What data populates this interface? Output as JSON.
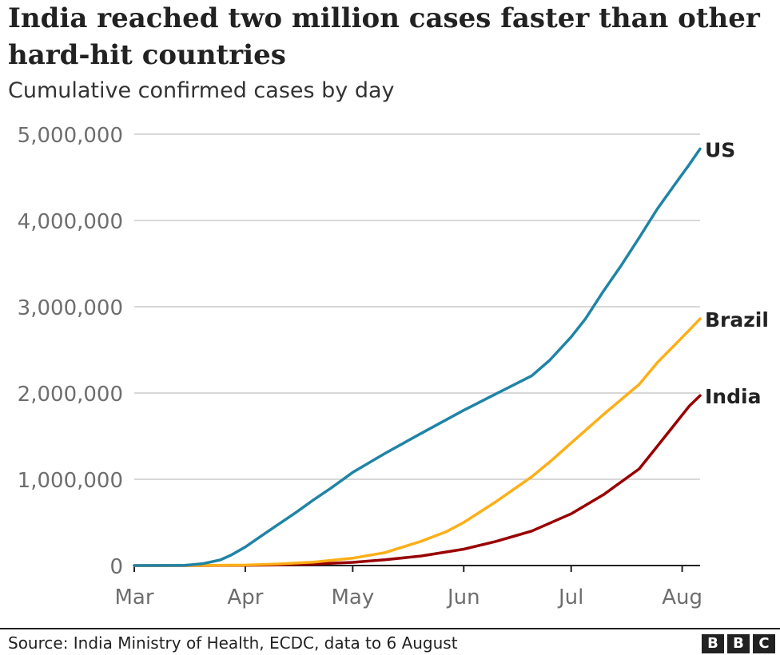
{
  "title": "India reached two million cases faster than other hard-hit countries",
  "subtitle": "Cumulative confirmed cases by day",
  "source": "Source: India Ministry of Health, ECDC, data to 6 August",
  "logo_letters": [
    "B",
    "B",
    "C"
  ],
  "colors": {
    "US": "#1f84a6",
    "Brazil": "#fdaf17",
    "India": "#990000",
    "grid": "#cccccc",
    "axis": "#222222",
    "tick_text": "#6e6e6e",
    "label_text": "#222222"
  },
  "chart_data": {
    "type": "line",
    "title": "India reached two million cases faster than other hard-hit countries",
    "subtitle": "Cumulative confirmed cases by day",
    "x_axis": {
      "type": "date",
      "ticks": [
        {
          "label": "Mar",
          "date": "2020-03-01"
        },
        {
          "label": "Apr",
          "date": "2020-04-01"
        },
        {
          "label": "May",
          "date": "2020-05-01"
        },
        {
          "label": "Jun",
          "date": "2020-06-01"
        },
        {
          "label": "Jul",
          "date": "2020-07-01"
        },
        {
          "label": "Aug",
          "date": "2020-08-01"
        }
      ],
      "range": [
        "2020-03-01",
        "2020-08-06"
      ]
    },
    "y_axis": {
      "range": [
        0,
        5000000
      ],
      "ticks": [
        {
          "value": 0,
          "label": "0"
        },
        {
          "value": 1000000,
          "label": "1,000,000"
        },
        {
          "value": 2000000,
          "label": "2,000,000"
        },
        {
          "value": 3000000,
          "label": "3,000,000"
        },
        {
          "value": 4000000,
          "label": "4,000,000"
        },
        {
          "value": 5000000,
          "label": "5,000,000"
        }
      ],
      "grid": true
    },
    "legend": "direct labels at line ends",
    "series": [
      {
        "name": "US",
        "color": "#1f84a6",
        "points": [
          [
            "2020-03-01",
            0
          ],
          [
            "2020-03-10",
            1000
          ],
          [
            "2020-03-15",
            3000
          ],
          [
            "2020-03-20",
            20000
          ],
          [
            "2020-03-25",
            65000
          ],
          [
            "2020-03-28",
            120000
          ],
          [
            "2020-04-01",
            215000
          ],
          [
            "2020-04-05",
            330000
          ],
          [
            "2020-04-10",
            470000
          ],
          [
            "2020-04-15",
            610000
          ],
          [
            "2020-04-20",
            760000
          ],
          [
            "2020-04-25",
            900000
          ],
          [
            "2020-05-01",
            1080000
          ],
          [
            "2020-05-10",
            1300000
          ],
          [
            "2020-05-20",
            1530000
          ],
          [
            "2020-06-01",
            1800000
          ],
          [
            "2020-06-10",
            1990000
          ],
          [
            "2020-06-20",
            2200000
          ],
          [
            "2020-06-25",
            2380000
          ],
          [
            "2020-07-01",
            2650000
          ],
          [
            "2020-07-05",
            2860000
          ],
          [
            "2020-07-10",
            3180000
          ],
          [
            "2020-07-15",
            3480000
          ],
          [
            "2020-07-20",
            3800000
          ],
          [
            "2020-07-25",
            4130000
          ],
          [
            "2020-07-30",
            4420000
          ],
          [
            "2020-08-03",
            4650000
          ],
          [
            "2020-08-06",
            4830000
          ]
        ]
      },
      {
        "name": "Brazil",
        "color": "#fdaf17",
        "points": [
          [
            "2020-03-01",
            0
          ],
          [
            "2020-03-20",
            1000
          ],
          [
            "2020-04-01",
            6000
          ],
          [
            "2020-04-10",
            18000
          ],
          [
            "2020-04-20",
            40000
          ],
          [
            "2020-05-01",
            85000
          ],
          [
            "2020-05-10",
            150000
          ],
          [
            "2020-05-20",
            280000
          ],
          [
            "2020-05-27",
            390000
          ],
          [
            "2020-06-01",
            500000
          ],
          [
            "2020-06-10",
            740000
          ],
          [
            "2020-06-20",
            1030000
          ],
          [
            "2020-06-25",
            1200000
          ],
          [
            "2020-07-01",
            1420000
          ],
          [
            "2020-07-10",
            1750000
          ],
          [
            "2020-07-20",
            2100000
          ],
          [
            "2020-07-25",
            2350000
          ],
          [
            "2020-07-30",
            2560000
          ],
          [
            "2020-08-03",
            2730000
          ],
          [
            "2020-08-06",
            2860000
          ]
        ]
      },
      {
        "name": "India",
        "color": "#990000",
        "points": [
          [
            "2020-03-01",
            0
          ],
          [
            "2020-03-20",
            300
          ],
          [
            "2020-04-01",
            2000
          ],
          [
            "2020-04-10",
            7600
          ],
          [
            "2020-04-20",
            18000
          ],
          [
            "2020-05-01",
            37000
          ],
          [
            "2020-05-10",
            67000
          ],
          [
            "2020-05-20",
            110000
          ],
          [
            "2020-06-01",
            190000
          ],
          [
            "2020-06-10",
            280000
          ],
          [
            "2020-06-20",
            400000
          ],
          [
            "2020-07-01",
            600000
          ],
          [
            "2020-07-10",
            820000
          ],
          [
            "2020-07-20",
            1120000
          ],
          [
            "2020-07-25",
            1380000
          ],
          [
            "2020-07-30",
            1640000
          ],
          [
            "2020-08-03",
            1850000
          ],
          [
            "2020-08-06",
            1970000
          ]
        ]
      }
    ]
  }
}
